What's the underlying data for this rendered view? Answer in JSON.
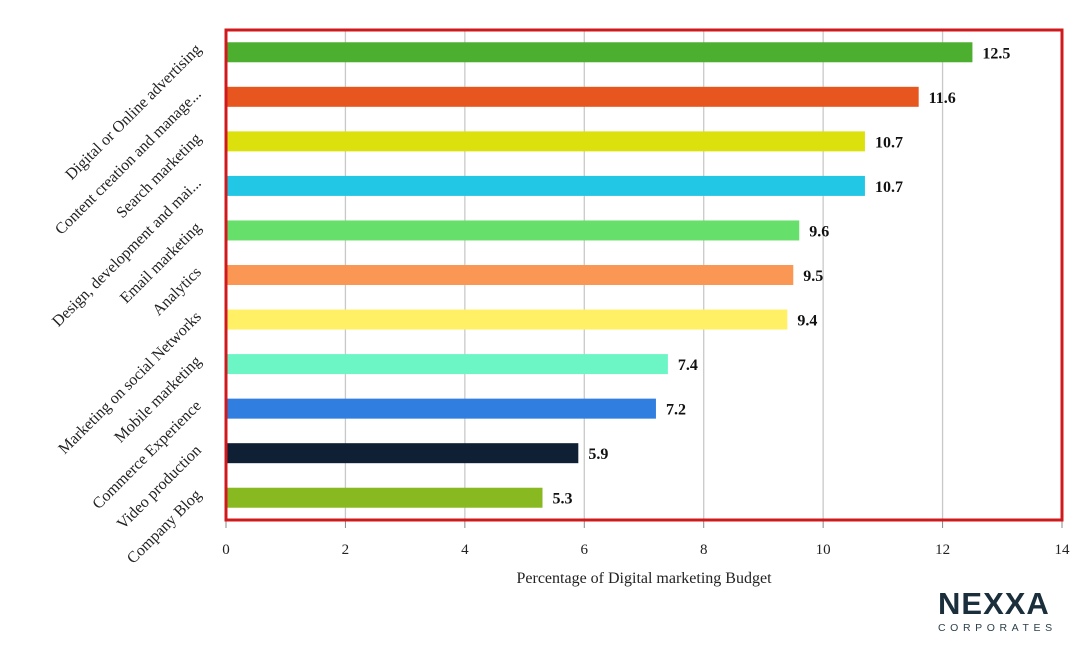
{
  "chart_data": {
    "type": "bar",
    "orientation": "horizontal",
    "categories": [
      "Digital or Online advertising",
      "Content creation and manage...",
      "Search marketing",
      "Design, development and mai...",
      "Email marketing",
      "Analytics",
      "Marketing on social Networks",
      "Mobile marketing",
      "Commerce Experience",
      "Video production",
      "Company Blog"
    ],
    "values": [
      12.5,
      11.6,
      10.7,
      10.7,
      9.6,
      9.5,
      9.4,
      7.4,
      7.2,
      5.9,
      5.3
    ],
    "data_labels": [
      "12.5",
      "11.6",
      "10.7",
      "10.7",
      "9.6",
      "9.5",
      "9.4",
      "7.4",
      "7.2",
      "5.9",
      "5.3"
    ],
    "colors": [
      "#4caf2f",
      "#e8561f",
      "#dce00c",
      "#22c7e6",
      "#66e06a",
      "#fa9755",
      "#fff066",
      "#6cf5c5",
      "#2f7ee0",
      "#0f2035",
      "#88b920"
    ],
    "xlabel": "Percentage of Digital marketing Budget",
    "ylabel": "",
    "xlim": [
      0,
      14
    ],
    "xticks": [
      0,
      2,
      4,
      6,
      8,
      10,
      12,
      14
    ],
    "grid": "vertical",
    "highlight_border_color": "#d0191d"
  },
  "logo": {
    "word": "NEXXA",
    "sub": "CORPORATES"
  }
}
